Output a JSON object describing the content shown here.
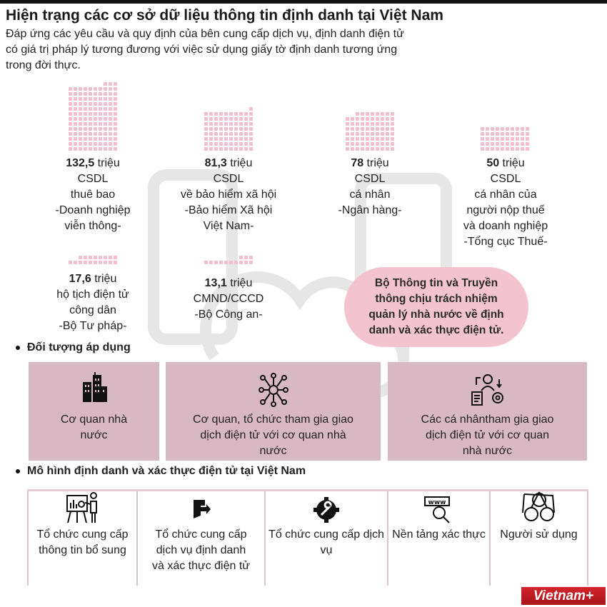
{
  "header": {
    "title": "Hiện trạng các cơ sở dữ liệu thông tin định danh tại Việt Nam",
    "subtitle": "Đáp ứng các yêu cầu và quy định của bên cung cấp dịch vụ, định danh điện tử có giá trị pháp lý tương đương với việc sử dụng giấy tờ định danh tương ứng trong đời thực."
  },
  "stats": [
    {
      "value": 132.5,
      "number": "132,5",
      "unit": " triệu",
      "lines": [
        "CSDL",
        "thuê bao",
        "-Doanh nghiệp",
        "viễn thông-"
      ]
    },
    {
      "value": 81.3,
      "number": "81,3",
      "unit": " triệu",
      "lines": [
        "CSDL",
        "về bảo hiểm xã hội",
        "-Bảo hiểm Xã hội",
        "Việt Nam-"
      ]
    },
    {
      "value": 78,
      "number": "78",
      "unit": " triệu",
      "lines": [
        "CSDL",
        "cá nhân",
        "-Ngân hàng-"
      ]
    },
    {
      "value": 50,
      "number": "50",
      "unit": " triệu",
      "lines": [
        "CSDL",
        "cá nhân của",
        "người nộp thuế",
        "và doanh nghiệp",
        "-Tổng cục Thuế-"
      ]
    },
    {
      "value": 17.6,
      "number": "17,6",
      "unit": " triệu",
      "lines": [
        "hộ tịch điện tử",
        "công dân",
        "-Bộ Tư pháp-"
      ]
    },
    {
      "value": 13.1,
      "number": "13,1",
      "unit": " triệu",
      "lines": [
        "CMND/CCCD",
        "-Bộ Công an-"
      ]
    }
  ],
  "bubble": "Bộ Thông tin và Truyền thông chịu trách nhiệm quản lý nhà nước về định danh và xác thực điện tử.",
  "applicable": {
    "heading": "Đối tượng áp dụng",
    "items": [
      {
        "icon": "building-icon",
        "label": "Cơ quan nhà nước"
      },
      {
        "icon": "network-people-icon",
        "label": "Cơ quan, tổ chức tham gia giao dịch điện tử với cơ quan nhà nước"
      },
      {
        "icon": "person-exchange-icon",
        "label": "Các cá nhântham gia giao dịch điện tử với cơ quan nhà nước"
      }
    ]
  },
  "model": {
    "heading": "Mô hình định danh và xác thực điện tử tại Việt Nam",
    "items": [
      {
        "icon": "presentation-icon",
        "label": "Tổ chức cung cấp thông tin bổ sung"
      },
      {
        "icon": "door-exit-icon",
        "label": "Tổ chức cung cấp dịch vụ định danh và xác thực điện tử"
      },
      {
        "icon": "gear-wrench-icon",
        "label": "Tổ chức cung cấp dịch vụ"
      },
      {
        "icon": "www-search-icon",
        "label": "Nền tảng xác thực"
      },
      {
        "icon": "users-network-icon",
        "label": "Người sử dụng"
      }
    ]
  },
  "logo": "Vietnam+",
  "colors": {
    "waffle": "#f3bfd0",
    "box": "#d8b9c3",
    "bubble": "#f4c3d0",
    "logo": "#c41e26"
  }
}
